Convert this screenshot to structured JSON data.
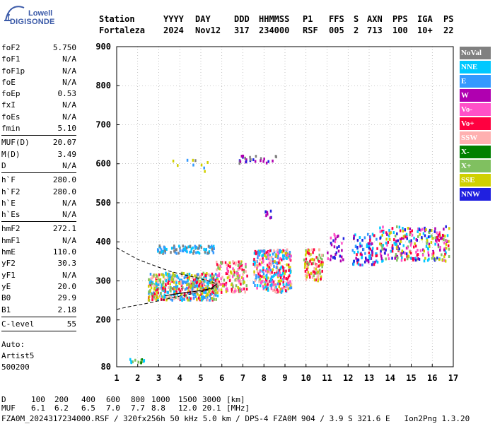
{
  "logo": {
    "line1": "Lowell",
    "line2": "DIGISONDE"
  },
  "header": {
    "columns": [
      {
        "label": "Station",
        "value": "Fortaleza"
      },
      {
        "label": "YYYY",
        "value": "2024"
      },
      {
        "label": "DAY",
        "value": "Nov12"
      },
      {
        "label": "DDD",
        "value": "317"
      },
      {
        "label": "HHMMSS",
        "value": "234000"
      },
      {
        "label": "P1",
        "value": "RSF"
      },
      {
        "label": "FFS",
        "value": "005"
      },
      {
        "label": "S",
        "value": "2"
      },
      {
        "label": "AXN",
        "value": "713"
      },
      {
        "label": "PPS",
        "value": "100"
      },
      {
        "label": "IGA",
        "value": "10+"
      },
      {
        "label": "PS",
        "value": "22"
      }
    ]
  },
  "params": {
    "group1": [
      {
        "name": "foF2",
        "value": "5.750"
      },
      {
        "name": "foF1",
        "value": "N/A"
      },
      {
        "name": "foF1p",
        "value": "N/A"
      },
      {
        "name": "foE",
        "value": "N/A"
      },
      {
        "name": "foEp",
        "value": "0.53"
      },
      {
        "name": "fxI",
        "value": "N/A"
      },
      {
        "name": "foEs",
        "value": "N/A"
      },
      {
        "name": "fmin",
        "value": "5.10"
      }
    ],
    "group2": [
      {
        "name": "MUF(D)",
        "value": "20.07"
      },
      {
        "name": "M(D)",
        "value": "3.49"
      },
      {
        "name": "D",
        "value": "N/A"
      }
    ],
    "group3": [
      {
        "name": "h`F",
        "value": "280.0"
      },
      {
        "name": "h`F2",
        "value": "280.0"
      },
      {
        "name": "h`E",
        "value": "N/A"
      },
      {
        "name": "h`Es",
        "value": "N/A"
      }
    ],
    "group4": [
      {
        "name": "hmF2",
        "value": "272.1"
      },
      {
        "name": "hmF1",
        "value": "N/A"
      },
      {
        "name": "hmE",
        "value": "110.0"
      },
      {
        "name": "yF2",
        "value": "30.3"
      },
      {
        "name": "yF1",
        "value": "N/A"
      },
      {
        "name": "yE",
        "value": "20.0"
      },
      {
        "name": "B0",
        "value": "29.9"
      },
      {
        "name": "B1",
        "value": "2.18"
      }
    ],
    "group5": [
      {
        "name": "C-level",
        "value": "55"
      }
    ]
  },
  "autoscaling": {
    "line1": "Auto:",
    "line2": "Artist5",
    "line3": "500200"
  },
  "legend": [
    {
      "label": "NoVal",
      "color": "#808080"
    },
    {
      "label": "NNE",
      "color": "#00c8ff"
    },
    {
      "label": "E",
      "color": "#3399ff"
    },
    {
      "label": "W",
      "color": "#b000b0"
    },
    {
      "label": "Vo-",
      "color": "#ff50c8"
    },
    {
      "label": "Vo+",
      "color": "#ff0040"
    },
    {
      "label": "SSW",
      "color": "#ffb0b0"
    },
    {
      "label": "X-",
      "color": "#008000"
    },
    {
      "label": "X+",
      "color": "#80c060"
    },
    {
      "label": "SSE",
      "color": "#d0d000"
    },
    {
      "label": "NNW",
      "color": "#2020e0"
    }
  ],
  "footer": {
    "d_label": "D",
    "d_values": [
      "100",
      "200",
      "400",
      "600",
      "800",
      "1000",
      "1500",
      "3000"
    ],
    "d_unit": "[km]",
    "muf_label": "MUF",
    "muf_values": [
      "6.1",
      "6.2",
      "6.5",
      "7.0",
      "7.7",
      "8.8",
      "12.0",
      "20.1"
    ],
    "muf_unit": "[MHz]",
    "file_line": "FZA0M_2024317234000.RSF / 320fx256h 50 kHz 5.0 km / DPS-4 FZA0M 904 / 3.9 S 321.6 E   Ion2Png 1.3.20"
  },
  "chart_data": {
    "type": "scatter",
    "x_range": [
      1,
      17
    ],
    "y_range": [
      80,
      900
    ],
    "x_ticks": [
      "1",
      "2",
      "3",
      "4",
      "5",
      "6",
      "7",
      "8",
      "9",
      "10",
      "11",
      "12",
      "13",
      "14",
      "15",
      "16",
      "17"
    ],
    "y_ticks": [
      "80",
      "200",
      "300",
      "400",
      "500",
      "600",
      "700",
      "800",
      "900"
    ],
    "grid": true,
    "x_tick_values": [
      1,
      2,
      3,
      4,
      5,
      6,
      7,
      8,
      9,
      10,
      11,
      12,
      13,
      14,
      15,
      16,
      17
    ],
    "y_tick_values": [
      80,
      200,
      300,
      400,
      500,
      600,
      700,
      800,
      900
    ],
    "echo_clusters": [
      {
        "x": [
          1.5,
          2.3
        ],
        "y": [
          88,
          100
        ],
        "colors": [
          "#008000",
          "#80c060",
          "#00c8ff"
        ],
        "density": 14
      },
      {
        "x": [
          2.5,
          5.8
        ],
        "y": [
          250,
          320
        ],
        "colors": [
          "#ffb0b0",
          "#d0d000",
          "#80c060",
          "#3399ff",
          "#00c8ff",
          "#ff0040"
        ],
        "density": 520
      },
      {
        "x": [
          2.9,
          5.7
        ],
        "y": [
          370,
          390
        ],
        "colors": [
          "#3399ff",
          "#00c8ff",
          "#808080"
        ],
        "density": 90
      },
      {
        "x": [
          5.7,
          7.2
        ],
        "y": [
          270,
          350
        ],
        "colors": [
          "#ff0040",
          "#d0d000",
          "#80c060",
          "#ffb0b0",
          "#ff50c8"
        ],
        "density": 150
      },
      {
        "x": [
          7.5,
          9.3
        ],
        "y": [
          270,
          380
        ],
        "colors": [
          "#ff0040",
          "#ffb0b0",
          "#d0d000",
          "#3399ff",
          "#ff50c8",
          "#00c8ff"
        ],
        "density": 320
      },
      {
        "x": [
          9.9,
          10.8
        ],
        "y": [
          300,
          380
        ],
        "colors": [
          "#ffb0b0",
          "#d0d000",
          "#80c060",
          "#ff0040"
        ],
        "density": 110
      },
      {
        "x": [
          11.0,
          11.8
        ],
        "y": [
          350,
          420
        ],
        "colors": [
          "#ff50c8",
          "#b000b0",
          "#2020e0"
        ],
        "density": 30
      },
      {
        "x": [
          12.2,
          13.4
        ],
        "y": [
          340,
          420
        ],
        "colors": [
          "#00c8ff",
          "#b000b0",
          "#2020e0",
          "#ff0040",
          "#3399ff"
        ],
        "density": 90
      },
      {
        "x": [
          13.5,
          16.8
        ],
        "y": [
          350,
          440
        ],
        "colors": [
          "#b000b0",
          "#ff50c8",
          "#2020e0",
          "#00c8ff",
          "#ff0040",
          "#d0d000",
          "#80c060"
        ],
        "density": 260
      },
      {
        "x": [
          6.8,
          8.6
        ],
        "y": [
          600,
          620
        ],
        "colors": [
          "#2020e0",
          "#b000b0",
          "#808080"
        ],
        "density": 26
      },
      {
        "x": [
          8.0,
          8.4
        ],
        "y": [
          460,
          480
        ],
        "colors": [
          "#2020e0",
          "#b000b0"
        ],
        "density": 8
      },
      {
        "x": [
          3.5,
          5.5
        ],
        "y": [
          580,
          610
        ],
        "colors": [
          "#808080",
          "#3399ff",
          "#d0d000"
        ],
        "density": 10
      }
    ],
    "profile_upper": {
      "x": [
        1.0,
        1.5,
        2.0,
        2.5,
        3.0,
        3.5,
        4.0,
        4.5,
        5.0,
        5.5,
        5.75
      ],
      "y": [
        385,
        370,
        355,
        345,
        335,
        325,
        318,
        312,
        305,
        298,
        292
      ]
    },
    "profile_lower": {
      "x": [
        1.0,
        1.5,
        2.0,
        2.5,
        3.0,
        3.5,
        4.0,
        4.5,
        5.0,
        5.5,
        5.75
      ],
      "y": [
        227,
        233,
        238,
        243,
        249,
        255,
        261,
        266,
        272,
        279,
        285
      ]
    },
    "trace_solid": {
      "x": [
        3.3,
        4.0,
        4.6,
        5.1,
        5.5,
        5.75
      ],
      "y": [
        262,
        268,
        272,
        276,
        281,
        292
      ]
    }
  }
}
